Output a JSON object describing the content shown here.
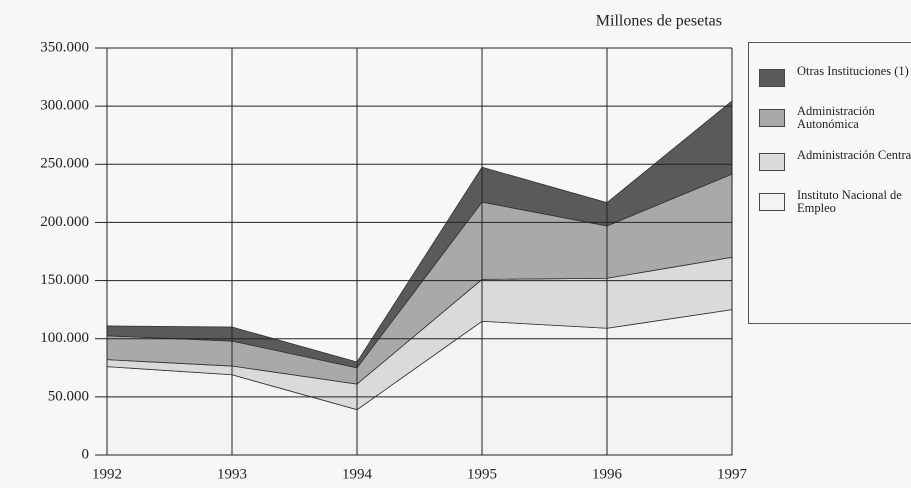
{
  "chart_data": {
    "type": "stacked_area",
    "title": "Millones de pesetas",
    "categories": [
      "1992",
      "1993",
      "1994",
      "1995",
      "1996",
      "1997"
    ],
    "series": [
      {
        "name": "Instituto Nacional de Empleo",
        "color": "#f3f3f1",
        "values": [
          76000,
          69000,
          39000,
          115000,
          109000,
          125000
        ]
      },
      {
        "name": "Administración Central",
        "color": "#d9dada",
        "values": [
          6000,
          7500,
          22000,
          36000,
          43000,
          45000
        ]
      },
      {
        "name": "Administración Autonómica",
        "color": "#a8a9a9",
        "values": [
          20500,
          21500,
          14000,
          66500,
          45000,
          71500
        ]
      },
      {
        "name": "Otras Instituciones (1)",
        "color": "#5a5a5a",
        "values": [
          8500,
          12000,
          5000,
          30000,
          20000,
          63000
        ]
      }
    ],
    "ylim": [
      0,
      350000
    ],
    "yticks": [
      0,
      {
        "value": 50000,
        "label": "50.000"
      },
      {
        "value": 100000,
        "label": "100.000"
      },
      {
        "value": 150000,
        "label": "150.000"
      },
      {
        "value": 200000,
        "label": "200.000"
      },
      {
        "value": 250000,
        "label": "250.000"
      },
      {
        "value": 300000,
        "label": "300.000"
      },
      {
        "value": 350000,
        "label": "350.000"
      }
    ],
    "grid": true
  }
}
